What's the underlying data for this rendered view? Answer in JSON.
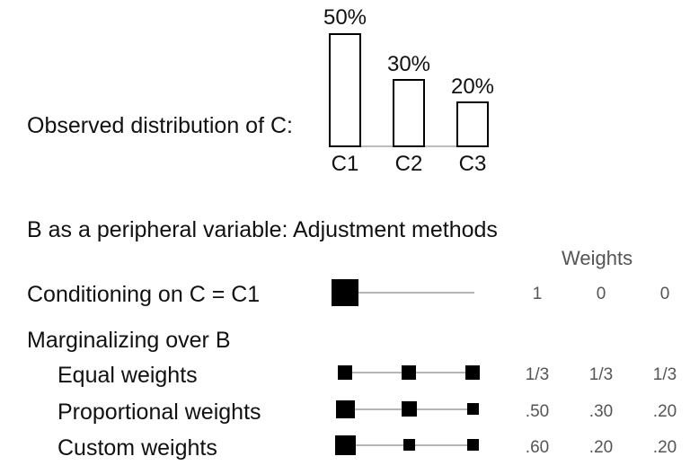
{
  "observed": {
    "label": "Observed distribution of C:",
    "bars": [
      {
        "category": "C1",
        "value": 50,
        "value_label": "50%"
      },
      {
        "category": "C2",
        "value": 30,
        "value_label": "30%"
      },
      {
        "category": "C3",
        "value": 20,
        "value_label": "20%"
      }
    ]
  },
  "section_title": "B as a peripheral variable: Adjustment methods",
  "weights_header": "Weights",
  "conditioning": {
    "label": "Conditioning on C = C1",
    "weights": [
      "1",
      "0",
      "0"
    ]
  },
  "marginalizing": {
    "label": "Marginalizing over B",
    "rows": [
      {
        "label": "Equal weights",
        "weights": [
          "1/3",
          "1/3",
          "1/3"
        ],
        "values": [
          0.333,
          0.333,
          0.333
        ]
      },
      {
        "label": "Proportional weights",
        "weights": [
          ".50",
          ".30",
          ".20"
        ],
        "values": [
          0.5,
          0.3,
          0.2
        ]
      },
      {
        "label": "Custom weights",
        "weights": [
          ".60",
          ".20",
          ".20"
        ],
        "values": [
          0.6,
          0.2,
          0.2
        ]
      }
    ]
  }
}
